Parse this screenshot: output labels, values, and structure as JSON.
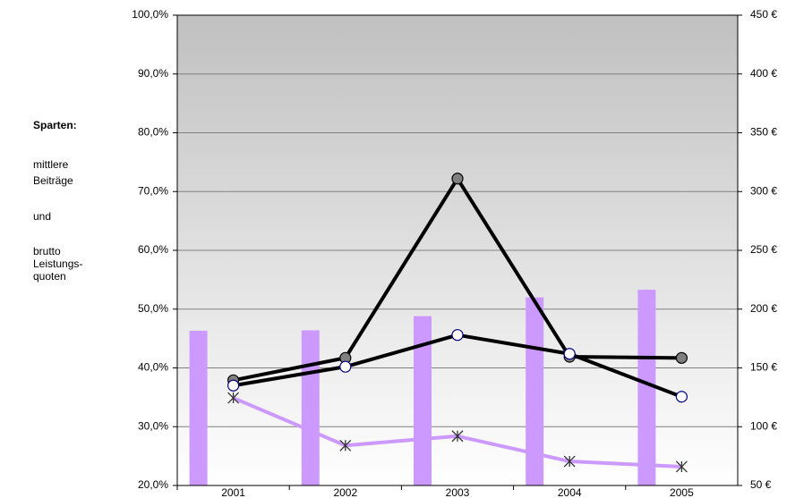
{
  "chart_data": {
    "type": "combo",
    "annotations": [
      [
        "Sparten:"
      ],
      [
        "mittlere",
        "Beiträge"
      ],
      [
        "und"
      ],
      [
        "brutto",
        "Leistungs-",
        "quoten"
      ]
    ],
    "categories": [
      "2001",
      "2002",
      "2003",
      "2004",
      "2005"
    ],
    "series": [
      {
        "type": "bar",
        "axis": "y2",
        "color": "#cc99ff",
        "values": [
          181.6,
          182,
          194,
          210,
          216.5
        ]
      },
      {
        "type": "line",
        "color": "#000000",
        "marker": "circle",
        "marker_color": "#808080",
        "values": [
          37.9,
          41.7,
          72.2,
          41.9,
          41.7
        ]
      },
      {
        "type": "line",
        "color": "#000000",
        "marker": "circle",
        "marker_color": "#ffffff",
        "marker_edge": "#000080",
        "values": [
          37.0,
          40.2,
          45.6,
          42.4,
          35.1
        ]
      },
      {
        "type": "line",
        "color": "#cc99ff",
        "marker": "star",
        "marker_color": "#333333",
        "values": [
          34.9,
          26.8,
          28.4,
          24.1,
          23.2
        ]
      }
    ],
    "ylim": [
      20,
      100
    ],
    "yticks": [
      {
        "value": 20,
        "label": "20,0%"
      },
      {
        "value": 30,
        "label": "30,0%"
      },
      {
        "value": 40,
        "label": "40,0%"
      },
      {
        "value": 50,
        "label": "50,0%"
      },
      {
        "value": 60,
        "label": "60,0%"
      },
      {
        "value": 70,
        "label": "70,0%"
      },
      {
        "value": 80,
        "label": "80,0%"
      },
      {
        "value": 90,
        "label": "90,0%"
      },
      {
        "value": 100,
        "label": "100,0%"
      }
    ],
    "y2lim": [
      50,
      450
    ],
    "y2ticks": [
      {
        "value": 50,
        "label": "50 €"
      },
      {
        "value": 100,
        "label": "100 €"
      },
      {
        "value": 150,
        "label": "150 €"
      },
      {
        "value": 200,
        "label": "200 €"
      },
      {
        "value": 250,
        "label": "250 €"
      },
      {
        "value": 300,
        "label": "300 €"
      },
      {
        "value": 350,
        "label": "350 €"
      },
      {
        "value": 400,
        "label": "400 €"
      },
      {
        "value": 450,
        "label": "450 €"
      }
    ],
    "grid": true,
    "background": [
      "#c0c0c0",
      "#ffffff"
    ]
  }
}
